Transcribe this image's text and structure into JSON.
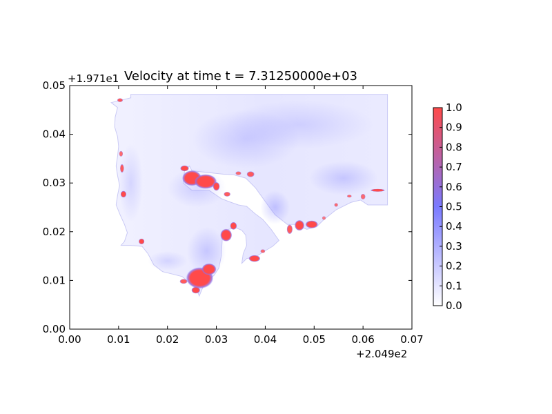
{
  "chart_data": {
    "type": "heatmap",
    "title": "Velocity at time t = 7.31250000e+03",
    "xlabel": "",
    "ylabel": "",
    "x_offset_label": "+2.049e2",
    "y_offset_label": "+1.971e1",
    "xlim": [
      0.0,
      0.07
    ],
    "ylim": [
      0.0,
      0.05
    ],
    "x_ticks": [
      "0.00",
      "0.01",
      "0.02",
      "0.03",
      "0.04",
      "0.05",
      "0.06",
      "0.07"
    ],
    "y_ticks": [
      "0.00",
      "0.01",
      "0.02",
      "0.03",
      "0.04",
      "0.05"
    ],
    "colorbar": {
      "range": [
        0.0,
        1.0
      ],
      "ticks": [
        "0.0",
        "0.1",
        "0.2",
        "0.3",
        "0.4",
        "0.5",
        "0.6",
        "0.7",
        "0.8",
        "0.9",
        "1.0"
      ],
      "colormap": [
        "#ffffff",
        "#7a7aff",
        "#ff4a4a"
      ]
    },
    "domain_outline": [
      [
        0.0085,
        0.0465
      ],
      [
        0.0125,
        0.0475
      ],
      [
        0.0125,
        0.0482
      ],
      [
        0.065,
        0.0482
      ],
      [
        0.065,
        0.0255
      ],
      [
        0.061,
        0.0255
      ],
      [
        0.0595,
        0.0265
      ],
      [
        0.0575,
        0.026
      ],
      [
        0.0545,
        0.0245
      ],
      [
        0.052,
        0.0225
      ],
      [
        0.0505,
        0.021
      ],
      [
        0.0485,
        0.0205
      ],
      [
        0.046,
        0.0215
      ],
      [
        0.0445,
        0.0215
      ],
      [
        0.042,
        0.0235
      ],
      [
        0.0405,
        0.0255
      ],
      [
        0.038,
        0.029
      ],
      [
        0.036,
        0.031
      ],
      [
        0.0335,
        0.0317
      ],
      [
        0.0315,
        0.0318
      ],
      [
        0.025,
        0.0325
      ],
      [
        0.0245,
        0.0335
      ],
      [
        0.0235,
        0.0325
      ],
      [
        0.0232,
        0.03
      ],
      [
        0.025,
        0.0285
      ],
      [
        0.0285,
        0.0285
      ],
      [
        0.031,
        0.0268
      ],
      [
        0.0325,
        0.0262
      ],
      [
        0.0345,
        0.0255
      ],
      [
        0.0362,
        0.0252
      ],
      [
        0.0378,
        0.0238
      ],
      [
        0.0395,
        0.0225
      ],
      [
        0.0412,
        0.0205
      ],
      [
        0.0428,
        0.0182
      ],
      [
        0.0415,
        0.017
      ],
      [
        0.0395,
        0.0158
      ],
      [
        0.038,
        0.0148
      ],
      [
        0.0362,
        0.0145
      ],
      [
        0.0352,
        0.0135
      ],
      [
        0.0355,
        0.0155
      ],
      [
        0.0362,
        0.0172
      ],
      [
        0.036,
        0.0193
      ],
      [
        0.0352,
        0.0203
      ],
      [
        0.034,
        0.0208
      ],
      [
        0.0325,
        0.0205
      ],
      [
        0.0315,
        0.0198
      ],
      [
        0.0312,
        0.0185
      ],
      [
        0.031,
        0.015
      ],
      [
        0.0305,
        0.0125
      ],
      [
        0.0295,
        0.011
      ],
      [
        0.028,
        0.0098
      ],
      [
        0.0272,
        0.0085
      ],
      [
        0.0265,
        0.0068
      ],
      [
        0.0258,
        0.0085
      ],
      [
        0.0245,
        0.0095
      ],
      [
        0.023,
        0.0108
      ],
      [
        0.021,
        0.0113
      ],
      [
        0.019,
        0.0118
      ],
      [
        0.0172,
        0.0132
      ],
      [
        0.016,
        0.0155
      ],
      [
        0.0148,
        0.017
      ],
      [
        0.0125,
        0.0172
      ],
      [
        0.0105,
        0.0172
      ],
      [
        0.0112,
        0.018
      ],
      [
        0.0118,
        0.0198
      ],
      [
        0.0112,
        0.0215
      ],
      [
        0.0103,
        0.0235
      ],
      [
        0.0095,
        0.0255
      ],
      [
        0.0098,
        0.0275
      ],
      [
        0.0102,
        0.0295
      ],
      [
        0.0098,
        0.0315
      ],
      [
        0.0095,
        0.0335
      ],
      [
        0.0098,
        0.0355
      ],
      [
        0.01,
        0.0375
      ],
      [
        0.0098,
        0.0395
      ],
      [
        0.0092,
        0.0415
      ],
      [
        0.0093,
        0.0435
      ],
      [
        0.0098,
        0.0455
      ]
    ],
    "high_velocity_regions": [
      {
        "cx": 0.0235,
        "cy": 0.033,
        "rx": 0.0009,
        "ry": 0.0006,
        "value": 1.0
      },
      {
        "cx": 0.025,
        "cy": 0.031,
        "rx": 0.002,
        "ry": 0.0016,
        "value": 1.0
      },
      {
        "cx": 0.0278,
        "cy": 0.0303,
        "rx": 0.0023,
        "ry": 0.0015,
        "value": 1.0
      },
      {
        "cx": 0.03,
        "cy": 0.0293,
        "rx": 0.0007,
        "ry": 0.0009,
        "value": 1.0
      },
      {
        "cx": 0.0322,
        "cy": 0.0277,
        "rx": 0.0007,
        "ry": 0.0005,
        "value": 0.9
      },
      {
        "cx": 0.032,
        "cy": 0.0193,
        "rx": 0.0012,
        "ry": 0.0013,
        "value": 1.0
      },
      {
        "cx": 0.0335,
        "cy": 0.0212,
        "rx": 0.0007,
        "ry": 0.0008,
        "value": 1.0
      },
      {
        "cx": 0.0266,
        "cy": 0.0105,
        "rx": 0.0028,
        "ry": 0.0022,
        "value": 1.0
      },
      {
        "cx": 0.0285,
        "cy": 0.0123,
        "rx": 0.0015,
        "ry": 0.0012,
        "value": 1.0
      },
      {
        "cx": 0.0258,
        "cy": 0.008,
        "rx": 0.0009,
        "ry": 0.0007,
        "value": 1.0
      },
      {
        "cx": 0.0233,
        "cy": 0.0098,
        "rx": 0.0008,
        "ry": 0.0005,
        "value": 0.9
      },
      {
        "cx": 0.047,
        "cy": 0.0213,
        "rx": 0.001,
        "ry": 0.0011,
        "value": 1.0
      },
      {
        "cx": 0.0495,
        "cy": 0.0215,
        "rx": 0.0013,
        "ry": 0.0008,
        "value": 1.0
      },
      {
        "cx": 0.045,
        "cy": 0.0205,
        "rx": 0.0006,
        "ry": 0.001,
        "value": 0.9
      },
      {
        "cx": 0.0147,
        "cy": 0.018,
        "rx": 0.0006,
        "ry": 0.0006,
        "value": 1.0
      },
      {
        "cx": 0.011,
        "cy": 0.0277,
        "rx": 0.0006,
        "ry": 0.0007,
        "value": 1.0
      },
      {
        "cx": 0.0107,
        "cy": 0.033,
        "rx": 0.0004,
        "ry": 0.0009,
        "value": 0.9
      },
      {
        "cx": 0.0105,
        "cy": 0.036,
        "rx": 0.0004,
        "ry": 0.0006,
        "value": 0.8
      },
      {
        "cx": 0.0103,
        "cy": 0.047,
        "rx": 0.0006,
        "ry": 0.0004,
        "value": 0.9
      },
      {
        "cx": 0.0378,
        "cy": 0.0145,
        "rx": 0.0012,
        "ry": 0.0007,
        "value": 1.0
      },
      {
        "cx": 0.0395,
        "cy": 0.016,
        "rx": 0.0005,
        "ry": 0.0004,
        "value": 0.8
      },
      {
        "cx": 0.037,
        "cy": 0.0318,
        "rx": 0.0008,
        "ry": 0.0006,
        "value": 0.9
      },
      {
        "cx": 0.0345,
        "cy": 0.032,
        "rx": 0.0006,
        "ry": 0.0004,
        "value": 0.8
      },
      {
        "cx": 0.0545,
        "cy": 0.0255,
        "rx": 0.0004,
        "ry": 0.0004,
        "value": 0.8
      },
      {
        "cx": 0.0572,
        "cy": 0.0273,
        "rx": 0.0005,
        "ry": 0.0003,
        "value": 0.8
      },
      {
        "cx": 0.063,
        "cy": 0.0285,
        "rx": 0.0015,
        "ry": 0.0003,
        "value": 1.0
      },
      {
        "cx": 0.06,
        "cy": 0.0272,
        "rx": 0.0005,
        "ry": 0.0006,
        "value": 0.8
      },
      {
        "cx": 0.052,
        "cy": 0.0228,
        "rx": 0.0004,
        "ry": 0.0004,
        "value": 0.7
      }
    ],
    "medium_velocity_regions": [
      {
        "cx": 0.036,
        "cy": 0.039,
        "rx": 0.011,
        "ry": 0.006,
        "value": 0.3
      },
      {
        "cx": 0.047,
        "cy": 0.042,
        "rx": 0.015,
        "ry": 0.005,
        "value": 0.25
      },
      {
        "cx": 0.056,
        "cy": 0.031,
        "rx": 0.007,
        "ry": 0.0035,
        "value": 0.35
      },
      {
        "cx": 0.042,
        "cy": 0.025,
        "rx": 0.003,
        "ry": 0.0035,
        "value": 0.4
      },
      {
        "cx": 0.028,
        "cy": 0.016,
        "rx": 0.004,
        "ry": 0.005,
        "value": 0.35
      },
      {
        "cx": 0.02,
        "cy": 0.014,
        "rx": 0.004,
        "ry": 0.002,
        "value": 0.25
      },
      {
        "cx": 0.026,
        "cy": 0.029,
        "rx": 0.006,
        "ry": 0.004,
        "value": 0.3
      },
      {
        "cx": 0.0125,
        "cy": 0.03,
        "rx": 0.0025,
        "ry": 0.008,
        "value": 0.25
      }
    ]
  }
}
